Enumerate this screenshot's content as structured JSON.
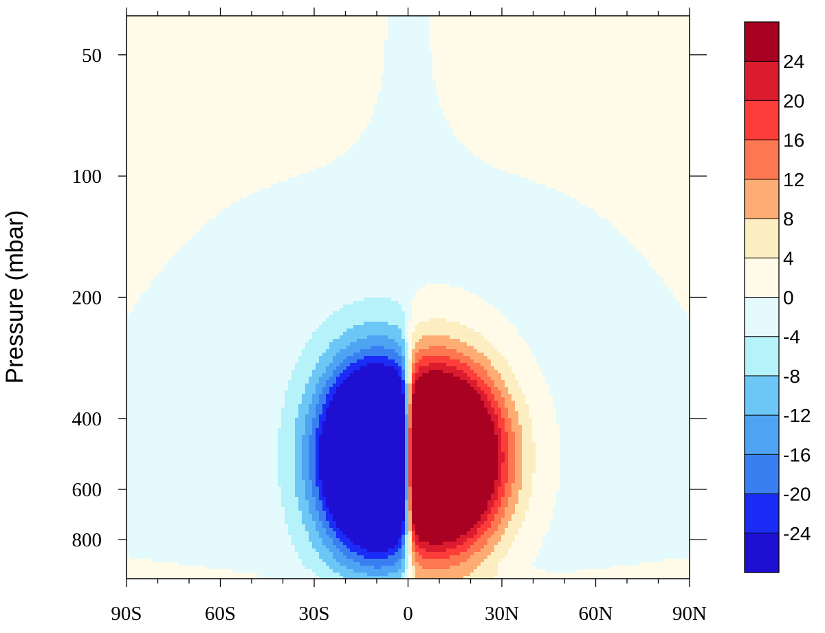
{
  "chart_data": {
    "type": "heatmap",
    "subtype": "filled-contour",
    "ylabel": "Pressure (mbar)",
    "xlabel": "",
    "x_ticks": [
      {
        "value": -90,
        "label": "90S"
      },
      {
        "value": -60,
        "label": "60S"
      },
      {
        "value": -30,
        "label": "30S"
      },
      {
        "value": 0,
        "label": "0"
      },
      {
        "value": 30,
        "label": "30N"
      },
      {
        "value": 60,
        "label": "60N"
      },
      {
        "value": 90,
        "label": "90N"
      }
    ],
    "y_ticks": [
      {
        "value": 50,
        "label": "50"
      },
      {
        "value": 100,
        "label": "100"
      },
      {
        "value": 200,
        "label": "200"
      },
      {
        "value": 400,
        "label": "400"
      },
      {
        "value": 600,
        "label": "600"
      },
      {
        "value": 800,
        "label": "800"
      }
    ],
    "xlim": [
      -90,
      90
    ],
    "ylim": [
      1000,
      40
    ],
    "y_scale": "log",
    "colorbar": {
      "levels": [
        -28,
        -24,
        -20,
        -16,
        -12,
        -8,
        -4,
        0,
        4,
        8,
        12,
        16,
        20,
        24,
        28
      ],
      "labels": [
        "-24",
        "-20",
        "-16",
        "-12",
        "-8",
        "-4",
        "0",
        "4",
        "8",
        "12",
        "16",
        "20",
        "24"
      ],
      "colors": [
        "#1e0fd2",
        "#1a2cf5",
        "#3a7ff2",
        "#4ea3f3",
        "#6cc6f6",
        "#b5f2fa",
        "#e4fafc",
        "#fffbe8",
        "#fdeec2",
        "#fdad73",
        "#fd7850",
        "#fd3d39",
        "#db1b2e",
        "#a80122"
      ],
      "placement": "right"
    },
    "features": [
      {
        "name": "southern-cell",
        "sign": "negative",
        "min_value": -24,
        "center_lat": -10,
        "center_pressure": 500
      },
      {
        "name": "northern-cell",
        "sign": "positive",
        "max_value": 24,
        "center_lat": 9,
        "center_pressure": 500
      }
    ],
    "grid": false
  }
}
